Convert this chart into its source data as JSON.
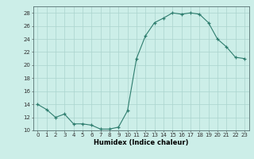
{
  "x": [
    0,
    1,
    2,
    3,
    4,
    5,
    6,
    7,
    8,
    9,
    10,
    11,
    12,
    13,
    14,
    15,
    16,
    17,
    18,
    19,
    20,
    21,
    22,
    23
  ],
  "y": [
    14.0,
    13.2,
    12.0,
    12.5,
    11.0,
    11.0,
    10.8,
    10.2,
    10.2,
    10.5,
    13.0,
    21.0,
    24.5,
    26.5,
    27.2,
    28.0,
    27.8,
    28.0,
    27.8,
    26.5,
    24.0,
    22.8,
    21.2,
    21.0
  ],
  "xlabel": "Humidex (Indice chaleur)",
  "xlim": [
    -0.5,
    23.5
  ],
  "ylim": [
    10,
    29
  ],
  "yticks": [
    10,
    12,
    14,
    16,
    18,
    20,
    22,
    24,
    26,
    28
  ],
  "xticks": [
    0,
    1,
    2,
    3,
    4,
    5,
    6,
    7,
    8,
    9,
    10,
    11,
    12,
    13,
    14,
    15,
    16,
    17,
    18,
    19,
    20,
    21,
    22,
    23
  ],
  "line_color": "#2e7d6e",
  "marker": "+",
  "bg_color": "#cceee8",
  "grid_color": "#aad4ce",
  "tick_fontsize": 5,
  "xlabel_fontsize": 6
}
